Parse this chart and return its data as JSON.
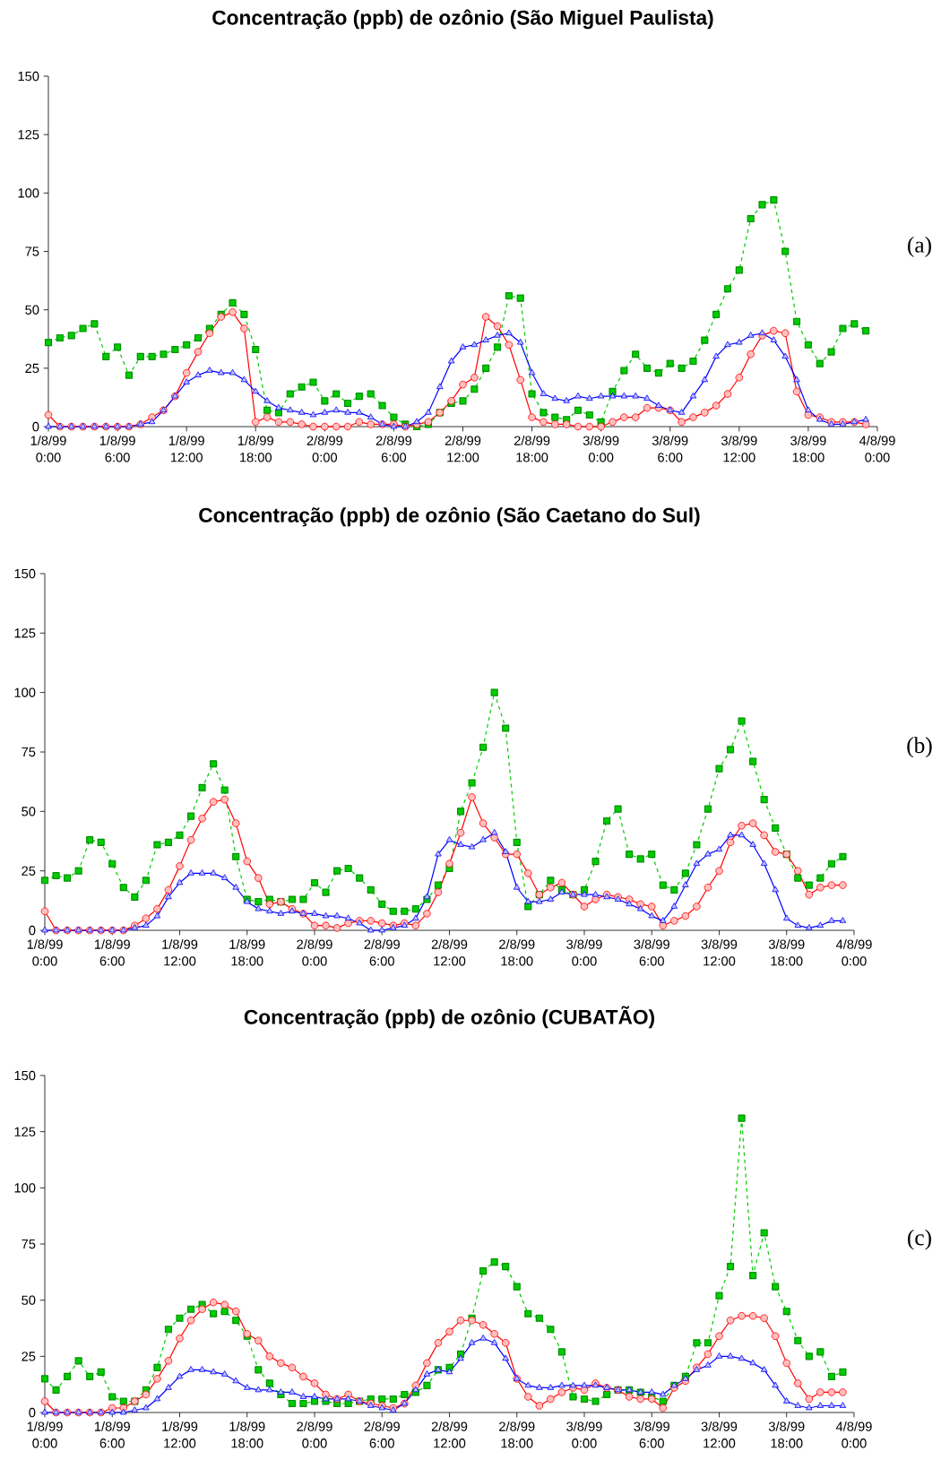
{
  "chart_data": [
    {
      "type": "line",
      "title": "Concentração (ppb) de ozônio (São Miguel Paulista)",
      "annotations": [
        "(a)"
      ],
      "x": [
        "1999-08-01T00:00",
        "1999-08-01T01:00",
        "1999-08-01T02:00",
        "1999-08-01T03:00",
        "1999-08-01T04:00",
        "1999-08-01T05:00",
        "1999-08-01T06:00",
        "1999-08-01T07:00",
        "1999-08-01T08:00",
        "1999-08-01T09:00",
        "1999-08-01T10:00",
        "1999-08-01T11:00",
        "1999-08-01T12:00",
        "1999-08-01T13:00",
        "1999-08-01T14:00",
        "1999-08-01T15:00",
        "1999-08-01T16:00",
        "1999-08-01T17:00",
        "1999-08-01T18:00",
        "1999-08-01T19:00",
        "1999-08-01T20:00",
        "1999-08-01T21:00",
        "1999-08-01T22:00",
        "1999-08-01T23:00",
        "1999-08-02T00:00",
        "1999-08-02T01:00",
        "1999-08-02T02:00",
        "1999-08-02T03:00",
        "1999-08-02T04:00",
        "1999-08-02T05:00",
        "1999-08-02T06:00",
        "1999-08-02T07:00",
        "1999-08-02T08:00",
        "1999-08-02T09:00",
        "1999-08-02T10:00",
        "1999-08-02T11:00",
        "1999-08-02T12:00",
        "1999-08-02T13:00",
        "1999-08-02T14:00",
        "1999-08-02T15:00",
        "1999-08-02T16:00",
        "1999-08-02T17:00",
        "1999-08-02T18:00",
        "1999-08-02T19:00",
        "1999-08-02T20:00",
        "1999-08-02T21:00",
        "1999-08-02T22:00",
        "1999-08-02T23:00",
        "1999-08-03T00:00",
        "1999-08-03T01:00",
        "1999-08-03T02:00",
        "1999-08-03T03:00",
        "1999-08-03T04:00",
        "1999-08-03T05:00",
        "1999-08-03T06:00",
        "1999-08-03T07:00",
        "1999-08-03T08:00",
        "1999-08-03T09:00",
        "1999-08-03T10:00",
        "1999-08-03T11:00",
        "1999-08-03T12:00",
        "1999-08-03T13:00",
        "1999-08-03T14:00",
        "1999-08-03T15:00",
        "1999-08-03T16:00",
        "1999-08-03T17:00",
        "1999-08-03T18:00",
        "1999-08-03T19:00",
        "1999-08-03T20:00",
        "1999-08-03T21:00",
        "1999-08-03T22:00",
        "1999-08-03T23:00"
      ],
      "xlim": [
        "1999-08-01T00:00",
        "1999-08-04T00:00"
      ],
      "xticks": [
        {
          "value": "1999-08-01T00:00",
          "label": "1/8/99 0:00"
        },
        {
          "value": "1999-08-01T06:00",
          "label": "1/8/99 6:00"
        },
        {
          "value": "1999-08-01T12:00",
          "label": "1/8/99 12:00"
        },
        {
          "value": "1999-08-01T18:00",
          "label": "1/8/99 18:00"
        },
        {
          "value": "1999-08-02T00:00",
          "label": "2/8/99 0:00"
        },
        {
          "value": "1999-08-02T06:00",
          "label": "2/8/99 6:00"
        },
        {
          "value": "1999-08-02T12:00",
          "label": "2/8/99 12:00"
        },
        {
          "value": "1999-08-02T18:00",
          "label": "2/8/99 18:00"
        },
        {
          "value": "1999-08-03T00:00",
          "label": "3/8/99 0:00"
        },
        {
          "value": "1999-08-03T06:00",
          "label": "3/8/99 6:00"
        },
        {
          "value": "1999-08-03T12:00",
          "label": "3/8/99 12:00"
        },
        {
          "value": "1999-08-03T18:00",
          "label": "3/8/99 18:00"
        },
        {
          "value": "1999-08-04T00:00",
          "label": "4/8/99 0:00"
        }
      ],
      "ylim": [
        0,
        150
      ],
      "yticks": [
        0,
        25,
        50,
        75,
        100,
        125,
        150
      ],
      "series": [
        {
          "color": "#00cc00",
          "marker": "square",
          "line_style": "dashed",
          "values": [
            36,
            38,
            39,
            42,
            44,
            30,
            34,
            22,
            30,
            30,
            31,
            33,
            35,
            38,
            42,
            48,
            53,
            48,
            33,
            7,
            6,
            14,
            17,
            19,
            11,
            14,
            10,
            13,
            14,
            9,
            4,
            1,
            0,
            1,
            6,
            10,
            11,
            16,
            25,
            34,
            56,
            55,
            14,
            6,
            4,
            3,
            7,
            5,
            2,
            15,
            24,
            31,
            25,
            23,
            27,
            25,
            28,
            37,
            48,
            59,
            67,
            89,
            95,
            97,
            75,
            45,
            35,
            27,
            32,
            42,
            44,
            41
          ]
        },
        {
          "color": "#ff0000",
          "marker": "circle",
          "line_style": "solid",
          "values": [
            5,
            0,
            0,
            0,
            0,
            0,
            0,
            0,
            1,
            4,
            7,
            13,
            23,
            32,
            40,
            47,
            49,
            42,
            2,
            4,
            2,
            2,
            1,
            0,
            0,
            0,
            0,
            2,
            1,
            1,
            1,
            0,
            1,
            2,
            6,
            11,
            18,
            21,
            47,
            43,
            35,
            20,
            4,
            2,
            1,
            1,
            0,
            0,
            0,
            2,
            4,
            4,
            8,
            8,
            7,
            2,
            4,
            6,
            9,
            14,
            21,
            31,
            39,
            41,
            40,
            15,
            5,
            4,
            2,
            2,
            2,
            1
          ]
        },
        {
          "color": "#0000ff",
          "marker": "triangle",
          "line_style": "solid",
          "values": [
            0,
            0,
            0,
            0,
            0,
            0,
            0,
            0,
            1,
            2,
            7,
            13,
            19,
            22,
            24,
            23,
            23,
            20,
            15,
            11,
            8,
            7,
            6,
            5,
            6,
            7,
            6,
            6,
            4,
            1,
            0,
            0,
            2,
            6,
            17,
            28,
            34,
            35,
            37,
            39,
            40,
            36,
            23,
            14,
            12,
            11,
            13,
            12,
            13,
            13,
            13,
            13,
            12,
            9,
            7,
            6,
            13,
            20,
            30,
            35,
            36,
            39,
            40,
            37,
            30,
            20,
            7,
            3,
            1,
            1,
            2,
            3
          ]
        }
      ]
    },
    {
      "type": "line",
      "title": "Concentração (ppb) de ozônio (São Caetano do Sul)",
      "annotations": [
        "(b)"
      ],
      "x": [
        "1999-08-01T00:00",
        "1999-08-01T01:00",
        "1999-08-01T02:00",
        "1999-08-01T03:00",
        "1999-08-01T04:00",
        "1999-08-01T05:00",
        "1999-08-01T06:00",
        "1999-08-01T07:00",
        "1999-08-01T08:00",
        "1999-08-01T09:00",
        "1999-08-01T10:00",
        "1999-08-01T11:00",
        "1999-08-01T12:00",
        "1999-08-01T13:00",
        "1999-08-01T14:00",
        "1999-08-01T15:00",
        "1999-08-01T16:00",
        "1999-08-01T17:00",
        "1999-08-01T18:00",
        "1999-08-01T19:00",
        "1999-08-01T20:00",
        "1999-08-01T21:00",
        "1999-08-01T22:00",
        "1999-08-01T23:00",
        "1999-08-02T00:00",
        "1999-08-02T01:00",
        "1999-08-02T02:00",
        "1999-08-02T03:00",
        "1999-08-02T04:00",
        "1999-08-02T05:00",
        "1999-08-02T06:00",
        "1999-08-02T07:00",
        "1999-08-02T08:00",
        "1999-08-02T09:00",
        "1999-08-02T10:00",
        "1999-08-02T11:00",
        "1999-08-02T12:00",
        "1999-08-02T13:00",
        "1999-08-02T14:00",
        "1999-08-02T15:00",
        "1999-08-02T16:00",
        "1999-08-02T17:00",
        "1999-08-02T18:00",
        "1999-08-02T19:00",
        "1999-08-02T20:00",
        "1999-08-02T21:00",
        "1999-08-02T22:00",
        "1999-08-02T23:00",
        "1999-08-03T00:00",
        "1999-08-03T01:00",
        "1999-08-03T02:00",
        "1999-08-03T03:00",
        "1999-08-03T04:00",
        "1999-08-03T05:00",
        "1999-08-03T06:00",
        "1999-08-03T07:00",
        "1999-08-03T08:00",
        "1999-08-03T09:00",
        "1999-08-03T10:00",
        "1999-08-03T11:00",
        "1999-08-03T12:00",
        "1999-08-03T13:00",
        "1999-08-03T14:00",
        "1999-08-03T15:00",
        "1999-08-03T16:00",
        "1999-08-03T17:00",
        "1999-08-03T18:00",
        "1999-08-03T19:00",
        "1999-08-03T20:00",
        "1999-08-03T21:00",
        "1999-08-03T22:00",
        "1999-08-03T23:00"
      ],
      "xlim": [
        "1999-08-01T00:00",
        "1999-08-04T00:00"
      ],
      "xticks": [
        {
          "value": "1999-08-01T00:00",
          "label": "1/8/99 0:00"
        },
        {
          "value": "1999-08-01T06:00",
          "label": "1/8/99 6:00"
        },
        {
          "value": "1999-08-01T12:00",
          "label": "1/8/99 12:00"
        },
        {
          "value": "1999-08-01T18:00",
          "label": "1/8/99 18:00"
        },
        {
          "value": "1999-08-02T00:00",
          "label": "2/8/99 0:00"
        },
        {
          "value": "1999-08-02T06:00",
          "label": "2/8/99 6:00"
        },
        {
          "value": "1999-08-02T12:00",
          "label": "2/8/99 12:00"
        },
        {
          "value": "1999-08-02T18:00",
          "label": "2/8/99 18:00"
        },
        {
          "value": "1999-08-03T00:00",
          "label": "3/8/99 0:00"
        },
        {
          "value": "1999-08-03T06:00",
          "label": "3/8/99 6:00"
        },
        {
          "value": "1999-08-03T12:00",
          "label": "3/8/99 12:00"
        },
        {
          "value": "1999-08-03T18:00",
          "label": "3/8/99 18:00"
        },
        {
          "value": "1999-08-04T00:00",
          "label": "4/8/99 0:00"
        }
      ],
      "ylim": [
        0,
        150
      ],
      "yticks": [
        0,
        25,
        50,
        75,
        100,
        125,
        150
      ],
      "series": [
        {
          "color": "#00cc00",
          "marker": "square",
          "line_style": "dashed",
          "values": [
            21,
            23,
            22,
            25,
            38,
            37,
            28,
            18,
            14,
            21,
            36,
            37,
            40,
            48,
            60,
            70,
            59,
            31,
            13,
            12,
            13,
            12,
            13,
            13,
            20,
            16,
            25,
            26,
            22,
            17,
            11,
            8,
            8,
            9,
            13,
            19,
            26,
            50,
            62,
            77,
            100,
            85,
            37,
            10,
            15,
            21,
            17,
            15,
            17,
            29,
            46,
            51,
            32,
            30,
            32,
            19,
            17,
            24,
            36,
            51,
            68,
            76,
            88,
            71,
            55,
            43,
            32,
            22,
            19,
            22,
            28,
            31
          ]
        },
        {
          "color": "#ff0000",
          "marker": "circle",
          "line_style": "solid",
          "values": [
            8,
            0,
            0,
            0,
            0,
            0,
            0,
            0,
            2,
            5,
            9,
            17,
            27,
            38,
            47,
            54,
            55,
            45,
            29,
            22,
            11,
            12,
            9,
            7,
            2,
            2,
            1,
            3,
            4,
            4,
            3,
            2,
            3,
            2,
            7,
            16,
            28,
            41,
            56,
            45,
            39,
            32,
            32,
            24,
            15,
            18,
            20,
            15,
            10,
            13,
            15,
            14,
            13,
            11,
            10,
            2,
            4,
            6,
            10,
            18,
            25,
            37,
            44,
            45,
            40,
            33,
            32,
            25,
            15,
            18,
            19,
            19
          ]
        },
        {
          "color": "#0000ff",
          "marker": "triangle",
          "line_style": "solid",
          "values": [
            0,
            0,
            0,
            0,
            0,
            0,
            0,
            0,
            1,
            2,
            6,
            14,
            20,
            24,
            24,
            24,
            22,
            18,
            12,
            9,
            8,
            7,
            8,
            7,
            7,
            6,
            6,
            5,
            3,
            0,
            0,
            1,
            2,
            5,
            14,
            32,
            38,
            36,
            35,
            38,
            41,
            33,
            18,
            12,
            12,
            13,
            16,
            15,
            15,
            15,
            14,
            13,
            11,
            9,
            6,
            4,
            10,
            19,
            28,
            32,
            34,
            40,
            40,
            36,
            28,
            17,
            5,
            2,
            1,
            2,
            4,
            4
          ]
        }
      ]
    },
    {
      "type": "line",
      "title": "Concentração (ppb) de ozônio (CUBATÃO)",
      "annotations": [
        "(c)"
      ],
      "x": [
        "1999-08-01T00:00",
        "1999-08-01T01:00",
        "1999-08-01T02:00",
        "1999-08-01T03:00",
        "1999-08-01T04:00",
        "1999-08-01T05:00",
        "1999-08-01T06:00",
        "1999-08-01T07:00",
        "1999-08-01T08:00",
        "1999-08-01T09:00",
        "1999-08-01T10:00",
        "1999-08-01T11:00",
        "1999-08-01T12:00",
        "1999-08-01T13:00",
        "1999-08-01T14:00",
        "1999-08-01T15:00",
        "1999-08-01T16:00",
        "1999-08-01T17:00",
        "1999-08-01T18:00",
        "1999-08-01T19:00",
        "1999-08-01T20:00",
        "1999-08-01T21:00",
        "1999-08-01T22:00",
        "1999-08-01T23:00",
        "1999-08-02T00:00",
        "1999-08-02T01:00",
        "1999-08-02T02:00",
        "1999-08-02T03:00",
        "1999-08-02T04:00",
        "1999-08-02T05:00",
        "1999-08-02T06:00",
        "1999-08-02T07:00",
        "1999-08-02T08:00",
        "1999-08-02T09:00",
        "1999-08-02T10:00",
        "1999-08-02T11:00",
        "1999-08-02T12:00",
        "1999-08-02T13:00",
        "1999-08-02T14:00",
        "1999-08-02T15:00",
        "1999-08-02T16:00",
        "1999-08-02T17:00",
        "1999-08-02T18:00",
        "1999-08-02T19:00",
        "1999-08-02T20:00",
        "1999-08-02T21:00",
        "1999-08-02T22:00",
        "1999-08-02T23:00",
        "1999-08-03T00:00",
        "1999-08-03T01:00",
        "1999-08-03T02:00",
        "1999-08-03T03:00",
        "1999-08-03T04:00",
        "1999-08-03T05:00",
        "1999-08-03T06:00",
        "1999-08-03T07:00",
        "1999-08-03T08:00",
        "1999-08-03T09:00",
        "1999-08-03T10:00",
        "1999-08-03T11:00",
        "1999-08-03T12:00",
        "1999-08-03T13:00",
        "1999-08-03T14:00",
        "1999-08-03T15:00",
        "1999-08-03T16:00",
        "1999-08-03T17:00",
        "1999-08-03T18:00",
        "1999-08-03T19:00",
        "1999-08-03T20:00",
        "1999-08-03T21:00",
        "1999-08-03T22:00",
        "1999-08-03T23:00"
      ],
      "xlim": [
        "1999-08-01T00:00",
        "1999-08-04T00:00"
      ],
      "xticks": [
        {
          "value": "1999-08-01T00:00",
          "label": "1/8/99 0:00"
        },
        {
          "value": "1999-08-01T06:00",
          "label": "1/8/99 6:00"
        },
        {
          "value": "1999-08-01T12:00",
          "label": "1/8/99 12:00"
        },
        {
          "value": "1999-08-01T18:00",
          "label": "1/8/99 18:00"
        },
        {
          "value": "1999-08-02T00:00",
          "label": "2/8/99 0:00"
        },
        {
          "value": "1999-08-02T06:00",
          "label": "2/8/99 6:00"
        },
        {
          "value": "1999-08-02T12:00",
          "label": "2/8/99 12:00"
        },
        {
          "value": "1999-08-02T18:00",
          "label": "2/8/99 18:00"
        },
        {
          "value": "1999-08-03T00:00",
          "label": "3/8/99 0:00"
        },
        {
          "value": "1999-08-03T06:00",
          "label": "3/8/99 6:00"
        },
        {
          "value": "1999-08-03T12:00",
          "label": "3/8/99 12:00"
        },
        {
          "value": "1999-08-03T18:00",
          "label": "3/8/99 18:00"
        },
        {
          "value": "1999-08-04T00:00",
          "label": "4/8/99 0:00"
        }
      ],
      "ylim": [
        0,
        150
      ],
      "yticks": [
        0,
        25,
        50,
        75,
        100,
        125,
        150
      ],
      "series": [
        {
          "color": "#00cc00",
          "marker": "square",
          "line_style": "dashed",
          "values": [
            15,
            10,
            16,
            23,
            16,
            18,
            7,
            5,
            5,
            10,
            20,
            37,
            42,
            46,
            48,
            44,
            45,
            41,
            34,
            19,
            13,
            8,
            4,
            4,
            5,
            5,
            4,
            4,
            5,
            6,
            6,
            6,
            8,
            9,
            12,
            19,
            20,
            26,
            42,
            63,
            67,
            65,
            56,
            44,
            42,
            37,
            27,
            7,
            6,
            5,
            8,
            10,
            10,
            9,
            7,
            5,
            12,
            16,
            31,
            31,
            52,
            65,
            131,
            61,
            80,
            56,
            45,
            32,
            25,
            27,
            16,
            18
          ]
        },
        {
          "color": "#ff0000",
          "marker": "circle",
          "line_style": "solid",
          "values": [
            5,
            0,
            0,
            0,
            0,
            0,
            2,
            2,
            5,
            8,
            15,
            23,
            33,
            41,
            46,
            49,
            48,
            45,
            35,
            32,
            25,
            22,
            20,
            16,
            13,
            8,
            6,
            8,
            5,
            4,
            3,
            2,
            4,
            12,
            22,
            31,
            36,
            41,
            41,
            39,
            35,
            31,
            15,
            7,
            3,
            6,
            9,
            11,
            10,
            13,
            11,
            10,
            7,
            6,
            6,
            2,
            11,
            14,
            20,
            26,
            34,
            41,
            43,
            43,
            42,
            34,
            22,
            13,
            6,
            9,
            9,
            9
          ]
        },
        {
          "color": "#0000ff",
          "marker": "triangle",
          "line_style": "solid",
          "values": [
            0,
            0,
            0,
            0,
            0,
            0,
            0,
            0,
            1,
            2,
            6,
            11,
            16,
            19,
            19,
            18,
            17,
            14,
            11,
            10,
            10,
            9,
            9,
            7,
            7,
            6,
            6,
            6,
            5,
            3,
            2,
            1,
            4,
            10,
            17,
            19,
            18,
            24,
            31,
            33,
            31,
            24,
            15,
            12,
            11,
            11,
            12,
            12,
            12,
            12,
            11,
            10,
            10,
            9,
            9,
            8,
            12,
            15,
            19,
            21,
            25,
            25,
            24,
            22,
            19,
            12,
            5,
            3,
            2,
            3,
            3,
            3
          ]
        }
      ]
    }
  ]
}
